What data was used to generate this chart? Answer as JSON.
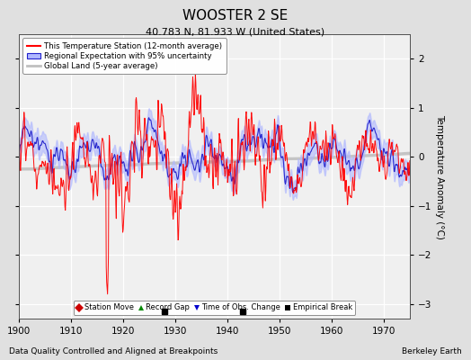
{
  "title": "WOOSTER 2 SE",
  "subtitle": "40.783 N, 81.933 W (United States)",
  "xlabel_left": "Data Quality Controlled and Aligned at Breakpoints",
  "xlabel_right": "Berkeley Earth",
  "ylabel": "Temperature Anomaly (°C)",
  "xlim": [
    1900,
    1975
  ],
  "ylim": [
    -3.3,
    2.5
  ],
  "yticks": [
    -3,
    -2,
    -1,
    0,
    1,
    2
  ],
  "xticks": [
    1900,
    1910,
    1920,
    1930,
    1940,
    1950,
    1960,
    1970
  ],
  "bg_color": "#e0e0e0",
  "plot_bg_color": "#f0f0f0",
  "grid_color": "#ffffff",
  "legend_labels": [
    "This Temperature Station (12-month average)",
    "Regional Expectation with 95% uncertainty",
    "Global Land (5-year average)"
  ],
  "marker_events": {
    "empirical_breaks": [
      1928,
      1943
    ]
  },
  "seed": 42
}
